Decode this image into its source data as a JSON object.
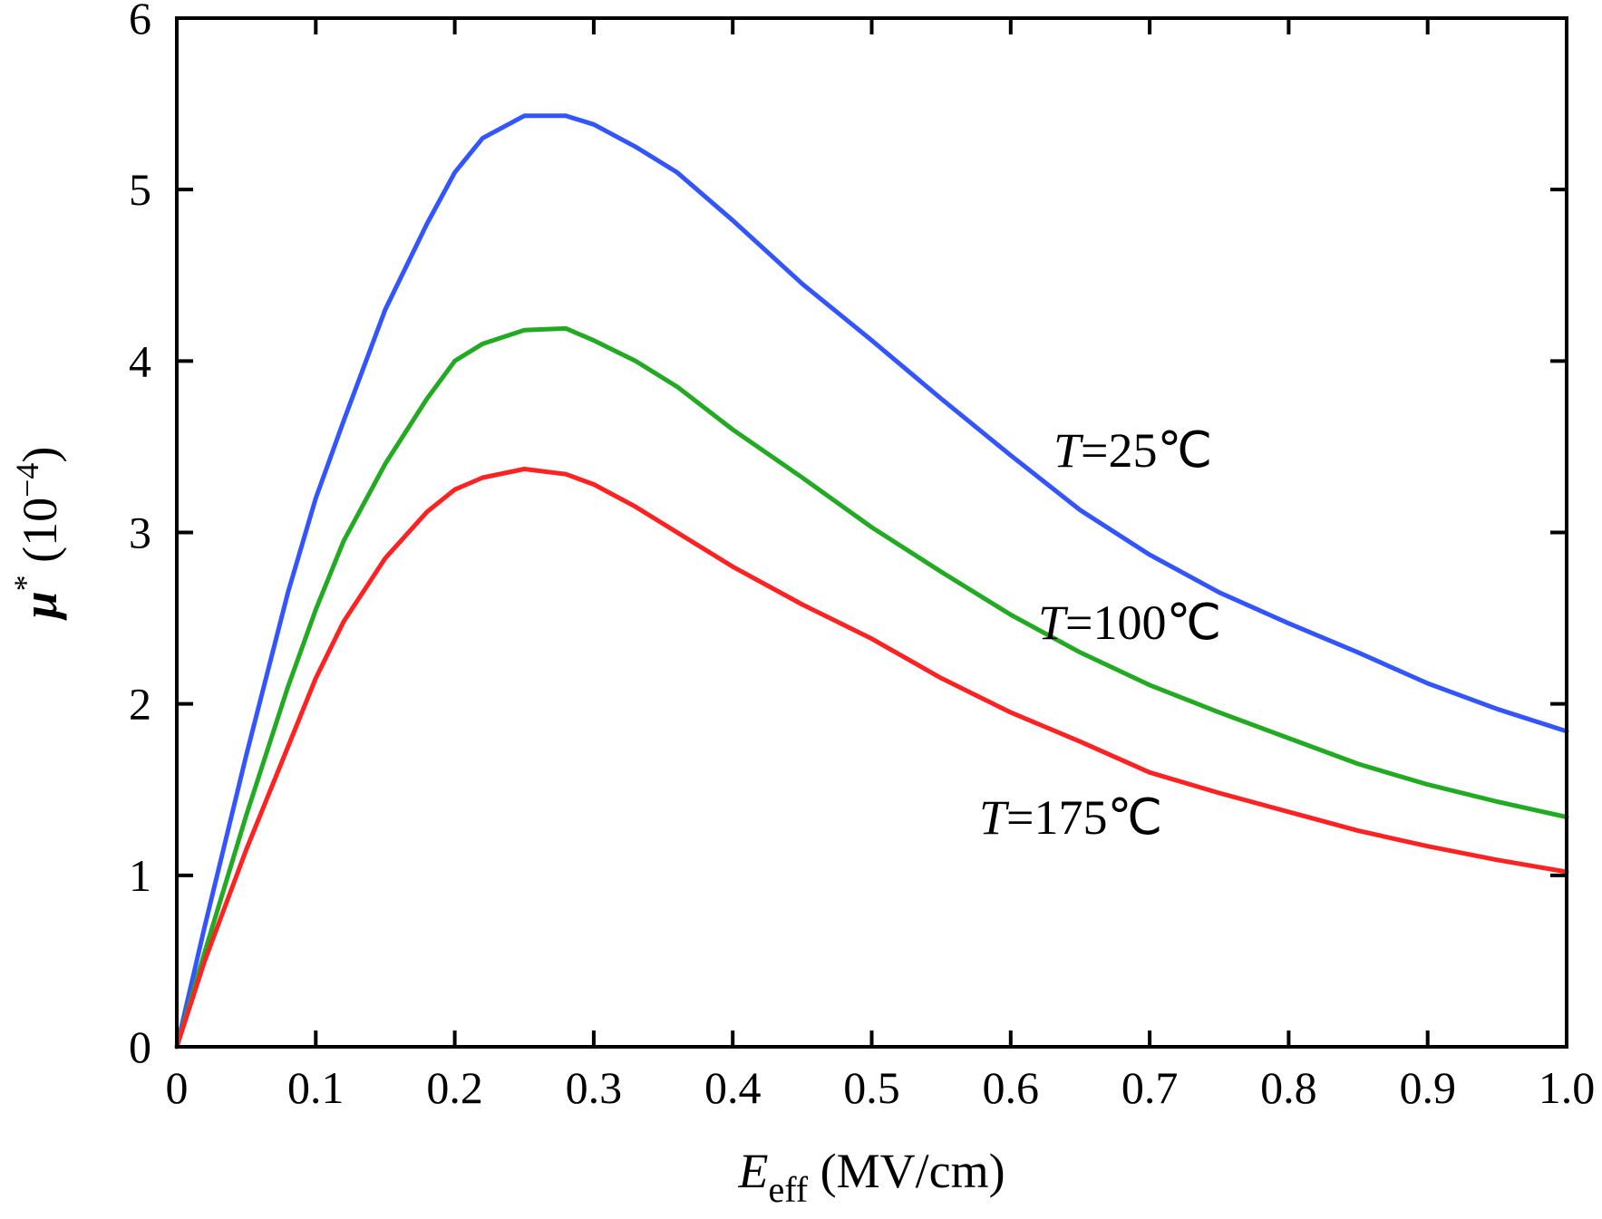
{
  "chart_data": {
    "type": "line",
    "xlabel": {
      "symbol": "E",
      "subscript": "eff",
      "unit": " (MV/cm)"
    },
    "ylabel": {
      "symbol": "μ",
      "superscript": "*",
      "unit": " (10",
      "exponent": "−4",
      "close": ")"
    },
    "xlim": [
      0,
      1.0
    ],
    "ylim": [
      0,
      6
    ],
    "x_ticks": [
      0,
      0.1,
      0.2,
      0.3,
      0.4,
      0.5,
      0.6,
      0.7,
      0.8,
      0.9,
      1.0
    ],
    "x_tick_labels": [
      "0",
      "0.1",
      "0.2",
      "0.3",
      "0.4",
      "0.5",
      "0.6",
      "0.7",
      "0.8",
      "0.9",
      "1.0"
    ],
    "y_ticks": [
      0,
      1,
      2,
      3,
      4,
      5,
      6
    ],
    "y_tick_labels": [
      "0",
      "1",
      "2",
      "3",
      "4",
      "5",
      "6"
    ],
    "grid": false,
    "legend": "none",
    "x": [
      0,
      0.02,
      0.05,
      0.08,
      0.1,
      0.12,
      0.15,
      0.18,
      0.2,
      0.22,
      0.25,
      0.28,
      0.3,
      0.33,
      0.36,
      0.4,
      0.45,
      0.5,
      0.55,
      0.6,
      0.65,
      0.7,
      0.75,
      0.8,
      0.85,
      0.9,
      0.95,
      1.0
    ],
    "series": [
      {
        "label": "T=25℃",
        "color": "#3355ff",
        "values": [
          0,
          0.7,
          1.7,
          2.65,
          3.2,
          3.65,
          4.3,
          4.8,
          5.1,
          5.3,
          5.43,
          5.43,
          5.38,
          5.25,
          5.1,
          4.82,
          4.45,
          4.12,
          3.78,
          3.45,
          3.13,
          2.87,
          2.65,
          2.47,
          2.3,
          2.12,
          1.97,
          1.84
        ]
      },
      {
        "label": "T=100℃",
        "color": "#22aa22",
        "values": [
          0,
          0.55,
          1.35,
          2.1,
          2.55,
          2.95,
          3.4,
          3.78,
          4.0,
          4.1,
          4.18,
          4.19,
          4.12,
          4.0,
          3.85,
          3.6,
          3.32,
          3.03,
          2.77,
          2.52,
          2.3,
          2.11,
          1.95,
          1.8,
          1.65,
          1.53,
          1.43,
          1.34
        ]
      },
      {
        "label": "T=175℃",
        "color": "#ff2222",
        "values": [
          0,
          0.5,
          1.15,
          1.75,
          2.15,
          2.48,
          2.85,
          3.12,
          3.25,
          3.32,
          3.37,
          3.34,
          3.28,
          3.15,
          3.0,
          2.8,
          2.58,
          2.38,
          2.15,
          1.95,
          1.78,
          1.6,
          1.48,
          1.37,
          1.26,
          1.17,
          1.09,
          1.02
        ]
      }
    ],
    "annotations": [
      {
        "prefix": "T",
        "text": "=25℃",
        "series": 0
      },
      {
        "prefix": "T",
        "text": "=100℃",
        "series": 1
      },
      {
        "prefix": "T",
        "text": "=175℃",
        "series": 2
      }
    ]
  }
}
